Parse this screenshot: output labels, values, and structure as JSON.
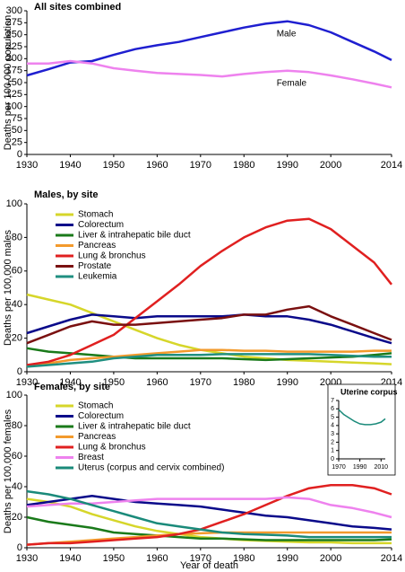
{
  "chart_data": [
    {
      "type": "line",
      "title": "All sites combined",
      "ylabel": "Deaths per 100,000 population",
      "legend": "inline",
      "x": [
        1930,
        1935,
        1940,
        1945,
        1950,
        1955,
        1960,
        1965,
        1970,
        1975,
        1980,
        1985,
        1990,
        1995,
        2000,
        2005,
        2010,
        2014
      ],
      "xlim": [
        1930,
        2014
      ],
      "xticks": [
        1930,
        1940,
        1950,
        1960,
        1970,
        1980,
        1990,
        2000,
        2014
      ],
      "ylim": [
        0,
        300
      ],
      "yticks": [
        0,
        25,
        50,
        75,
        100,
        125,
        150,
        175,
        200,
        225,
        250,
        275,
        300
      ],
      "series": [
        {
          "name": "Male",
          "color": "#1f1fd0",
          "values": [
            165,
            178,
            192,
            195,
            208,
            220,
            228,
            235,
            245,
            255,
            265,
            273,
            278,
            270,
            255,
            235,
            215,
            197
          ]
        },
        {
          "name": "Female",
          "color": "#ee82ee",
          "values": [
            190,
            190,
            195,
            190,
            180,
            175,
            170,
            168,
            166,
            163,
            168,
            172,
            175,
            172,
            165,
            157,
            148,
            140
          ]
        }
      ]
    },
    {
      "type": "line",
      "title": "Males, by site",
      "ylabel": "Deaths per 100,000 males",
      "legend": "upper left",
      "x": [
        1930,
        1935,
        1940,
        1945,
        1950,
        1955,
        1960,
        1965,
        1970,
        1975,
        1980,
        1985,
        1990,
        1995,
        2000,
        2005,
        2010,
        2014
      ],
      "xlim": [
        1930,
        2014
      ],
      "xticks": [
        1930,
        1940,
        1950,
        1960,
        1970,
        1980,
        1990,
        2000,
        2014
      ],
      "ylim": [
        0,
        100
      ],
      "yticks": [
        0,
        20,
        40,
        60,
        80,
        100
      ],
      "series": [
        {
          "name": "Stomach",
          "color": "#d6d62a",
          "values": [
            46,
            43,
            40,
            35,
            30,
            25,
            20,
            16,
            13,
            11,
            9,
            8,
            7,
            6.5,
            6,
            5.5,
            5,
            4.5
          ]
        },
        {
          "name": "Colorectum",
          "color": "#0a0a8a",
          "values": [
            23,
            27,
            31,
            34,
            33,
            32,
            33,
            33,
            33,
            33,
            34,
            33,
            33,
            31,
            28,
            24,
            20,
            17
          ]
        },
        {
          "name": "Liver & intrahepatic bile duct",
          "color": "#1a7a1a",
          "values": [
            14,
            12,
            11,
            10,
            9,
            8,
            8,
            8,
            8,
            8,
            7.5,
            7,
            7.5,
            8,
            8.5,
            9,
            10,
            11
          ]
        },
        {
          "name": "Pancreas",
          "color": "#f39a2c",
          "values": [
            3,
            5,
            7,
            8,
            9,
            10,
            11,
            12,
            13,
            13,
            12.5,
            12.5,
            12,
            12,
            12,
            12,
            12.5,
            12.5
          ]
        },
        {
          "name": "Lung & bronchus",
          "color": "#e02020",
          "values": [
            4,
            6,
            10,
            16,
            22,
            32,
            42,
            52,
            63,
            72,
            80,
            86,
            90,
            91,
            85,
            75,
            65,
            52
          ]
        },
        {
          "name": "Prostate",
          "color": "#7a1010",
          "values": [
            17,
            22,
            27,
            30,
            28,
            28,
            29,
            30,
            31,
            32,
            34,
            34,
            37,
            39,
            33,
            28,
            23,
            19
          ]
        },
        {
          "name": "Leukemia",
          "color": "#1f8f80",
          "values": [
            3,
            4,
            5,
            6,
            8,
            9,
            10,
            10,
            10,
            10.5,
            10.5,
            10.5,
            10.5,
            10.5,
            10,
            9.5,
            9,
            9
          ]
        }
      ]
    },
    {
      "type": "line",
      "title": "Females, by site",
      "ylabel": "Deaths per 100,000 females",
      "xlabel": "Year of death",
      "legend": "upper left",
      "x": [
        1930,
        1935,
        1940,
        1945,
        1950,
        1955,
        1960,
        1965,
        1970,
        1975,
        1980,
        1985,
        1990,
        1995,
        2000,
        2005,
        2010,
        2014
      ],
      "xlim": [
        1930,
        2014
      ],
      "xticks": [
        1930,
        1940,
        1950,
        1960,
        1970,
        1980,
        1990,
        2000,
        2014
      ],
      "ylim": [
        0,
        100
      ],
      "yticks": [
        0,
        20,
        40,
        60,
        80,
        100
      ],
      "series": [
        {
          "name": "Stomach",
          "color": "#d6d62a",
          "values": [
            32,
            30,
            27,
            22,
            18,
            14,
            11,
            9,
            7,
            6,
            5,
            4.5,
            4,
            3.5,
            3.5,
            3,
            3,
            3
          ]
        },
        {
          "name": "Colorectum",
          "color": "#0a0a8a",
          "values": [
            28,
            30,
            32,
            34,
            32,
            30,
            29,
            28,
            27,
            25,
            23,
            21,
            20,
            18,
            16,
            14,
            13,
            12
          ]
        },
        {
          "name": "Liver & intrahepatic bile duct",
          "color": "#1a7a1a",
          "values": [
            20,
            17,
            15,
            13,
            10,
            9,
            8,
            7,
            6,
            6,
            5.5,
            5,
            5,
            5,
            5,
            5,
            5,
            5.5
          ]
        },
        {
          "name": "Pancreas",
          "color": "#f39a2c",
          "values": [
            2,
            3,
            4,
            5,
            6,
            7,
            8,
            9,
            9.5,
            10,
            10,
            10,
            10,
            10,
            10,
            10,
            10,
            10
          ]
        },
        {
          "name": "Lung & bronchus",
          "color": "#e02020",
          "values": [
            2,
            3,
            3,
            4,
            5,
            6,
            7,
            9,
            12,
            17,
            22,
            28,
            34,
            39,
            41,
            41,
            39,
            35
          ]
        },
        {
          "name": "Breast",
          "color": "#ee82ee",
          "values": [
            27,
            28,
            29,
            29,
            30,
            31,
            32,
            32,
            32,
            32,
            32,
            32,
            33,
            32,
            28,
            26,
            23,
            20
          ]
        },
        {
          "name": "Uterus (corpus and cervix combined)",
          "color": "#1a8a7a",
          "values": [
            37,
            35,
            32,
            28,
            24,
            20,
            16,
            14,
            12,
            10,
            9,
            8.5,
            8,
            7,
            7,
            7,
            7,
            7
          ]
        }
      ]
    },
    {
      "type": "line",
      "title": "Uterine corpus",
      "legend": "none",
      "x": [
        1970,
        1975,
        1980,
        1985,
        1990,
        1995,
        2000,
        2005,
        2010,
        2014
      ],
      "xlim": [
        1970,
        2014
      ],
      "xticks": [
        1970,
        1990,
        2010
      ],
      "ylim": [
        0,
        7
      ],
      "yticks": [
        0,
        1,
        2,
        3,
        4,
        5,
        6,
        7
      ],
      "series": [
        {
          "name": "Uterine corpus",
          "color": "#1a8a7a",
          "values": [
            5.9,
            5.3,
            4.9,
            4.5,
            4.2,
            4.1,
            4.1,
            4.2,
            4.4,
            4.8
          ]
        }
      ]
    }
  ]
}
